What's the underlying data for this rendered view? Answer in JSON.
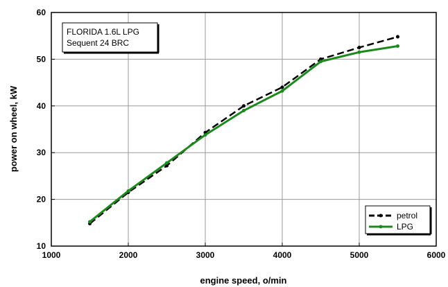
{
  "chart_data": {
    "type": "line",
    "xlabel": "engine speed,  o/min",
    "ylabel": "power on wheel,  kW",
    "xlim": [
      1000,
      6000
    ],
    "ylim": [
      10,
      60
    ],
    "xticks": [
      "1000",
      "2000",
      "3000",
      "4000",
      "5000",
      "6000"
    ],
    "yticks": [
      "10",
      "20",
      "30",
      "40",
      "50",
      "60"
    ],
    "grid": true,
    "legend_position": "bottom-right",
    "annotation_lines": [
      "FLORIDA 1.6L LPG",
      "Sequent 24 BRC"
    ],
    "series": [
      {
        "name": "petrol",
        "color": "#000000",
        "style": "dashed-with-dots",
        "x": [
          1500,
          2000,
          2500,
          3000,
          3500,
          4000,
          4500,
          5000,
          5500
        ],
        "y": [
          14.8,
          21.5,
          27.2,
          34.3,
          40.0,
          44.0,
          50.0,
          52.5,
          54.8
        ]
      },
      {
        "name": "LPG",
        "color": "#1a8a1a",
        "style": "solid-with-dots",
        "x": [
          1500,
          2000,
          2500,
          3000,
          3500,
          4000,
          4500,
          5000,
          5500
        ],
        "y": [
          15.2,
          21.8,
          27.8,
          33.8,
          39.0,
          43.2,
          49.5,
          51.5,
          52.8
        ]
      }
    ]
  }
}
